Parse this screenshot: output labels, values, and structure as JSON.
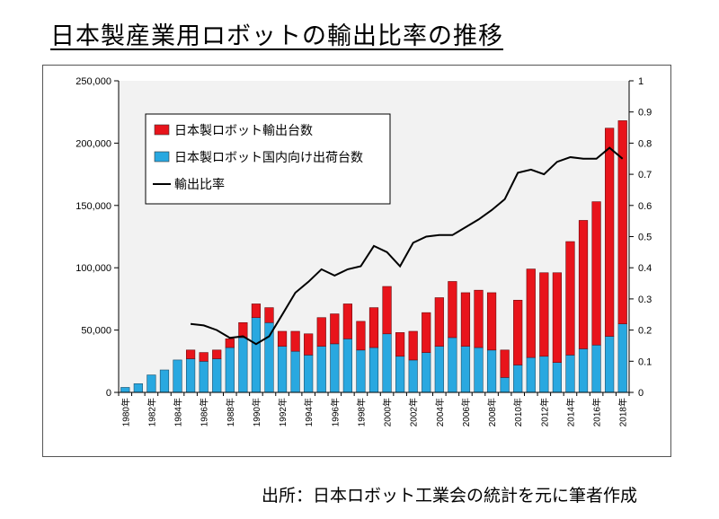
{
  "title": "日本製産業用ロボットの輸出比率の推移",
  "source": "出所：日本ロボット工業会の統計を元に筆者作成",
  "chart_data": {
    "type": "bar",
    "stacked": true,
    "title": "日本製産業用ロボットの輸出比率の推移",
    "categories": [
      "1980年",
      "1981年",
      "1982年",
      "1983年",
      "1984年",
      "1985年",
      "1986年",
      "1987年",
      "1988年",
      "1989年",
      "1990年",
      "1991年",
      "1992年",
      "1993年",
      "1994年",
      "1995年",
      "1996年",
      "1997年",
      "1998年",
      "1999年",
      "2000年",
      "2001年",
      "2002年",
      "2003年",
      "2004年",
      "2005年",
      "2006年",
      "2007年",
      "2008年",
      "2009年",
      "2010年",
      "2011年",
      "2012年",
      "2013年",
      "2014年",
      "2015年",
      "2016年",
      "2017年",
      "2018年"
    ],
    "x_tick_labels": [
      "1980年",
      "1982年",
      "1984年",
      "1986年",
      "1988年",
      "1990年",
      "1992年",
      "1994年",
      "1996年",
      "1998年",
      "2000年",
      "2002年",
      "2004年",
      "2006年",
      "2008年",
      "2010年",
      "2012年",
      "2014年",
      "2016年",
      "2018年"
    ],
    "series": [
      {
        "name": "日本製ロボット国内向け出荷台数",
        "type": "bar",
        "axis": "left",
        "color": "#29a8e0",
        "values": [
          4000,
          7000,
          14000,
          18000,
          26000,
          27000,
          25000,
          27000,
          36000,
          44000,
          60000,
          56000,
          37000,
          33000,
          30000,
          37000,
          39000,
          43000,
          34000,
          36000,
          47000,
          29000,
          26000,
          32000,
          37000,
          44000,
          37000,
          36000,
          34000,
          12000,
          22000,
          28000,
          29000,
          24000,
          30000,
          35000,
          38000,
          45000,
          55000
        ]
      },
      {
        "name": "日本製ロボット輸出台数",
        "type": "bar",
        "axis": "left",
        "color": "#e8141b",
        "values": [
          0,
          0,
          0,
          0,
          0,
          7000,
          7000,
          7000,
          7000,
          12000,
          11000,
          12000,
          12000,
          16000,
          17000,
          23000,
          24000,
          28000,
          23000,
          32000,
          38000,
          19000,
          23000,
          32000,
          39000,
          45000,
          43000,
          46000,
          46000,
          22000,
          52000,
          71000,
          67000,
          72000,
          91000,
          103000,
          115000,
          167000,
          163000
        ]
      },
      {
        "name": "輸出比率",
        "type": "line",
        "axis": "right",
        "color": "#000000",
        "values": [
          null,
          null,
          null,
          null,
          null,
          0.22,
          0.215,
          0.2,
          0.175,
          0.18,
          0.155,
          0.18,
          0.25,
          0.32,
          0.355,
          0.395,
          0.375,
          0.395,
          0.405,
          0.47,
          0.45,
          0.405,
          0.48,
          0.5,
          0.505,
          0.505,
          0.53,
          0.555,
          0.585,
          0.62,
          0.705,
          0.715,
          0.7,
          0.74,
          0.755,
          0.75,
          0.75,
          0.785,
          0.75
        ]
      }
    ],
    "y_left": {
      "min": 0,
      "max": 250000,
      "ticks": [
        "0",
        "50,000",
        "100,000",
        "150,000",
        "200,000",
        "250,000"
      ],
      "tick_values": [
        0,
        50000,
        100000,
        150000,
        200000,
        250000
      ]
    },
    "y_right": {
      "min": 0,
      "max": 1,
      "ticks": [
        "0",
        "0.1",
        "0.2",
        "0.3",
        "0.4",
        "0.5",
        "0.6",
        "0.7",
        "0.8",
        "0.9",
        "1"
      ],
      "tick_values": [
        0,
        0.1,
        0.2,
        0.3,
        0.4,
        0.5,
        0.6,
        0.7,
        0.8,
        0.9,
        1
      ]
    },
    "legend": {
      "placement": "top-left",
      "entries": [
        {
          "label": "日本製ロボット輸出台数",
          "kind": "box",
          "color": "#e8141b"
        },
        {
          "label": "日本製ロボット国内向け出荷台数",
          "kind": "box",
          "color": "#29a8e0"
        },
        {
          "label": "輸出比率",
          "kind": "line",
          "color": "#000000"
        }
      ]
    },
    "grid": false
  }
}
